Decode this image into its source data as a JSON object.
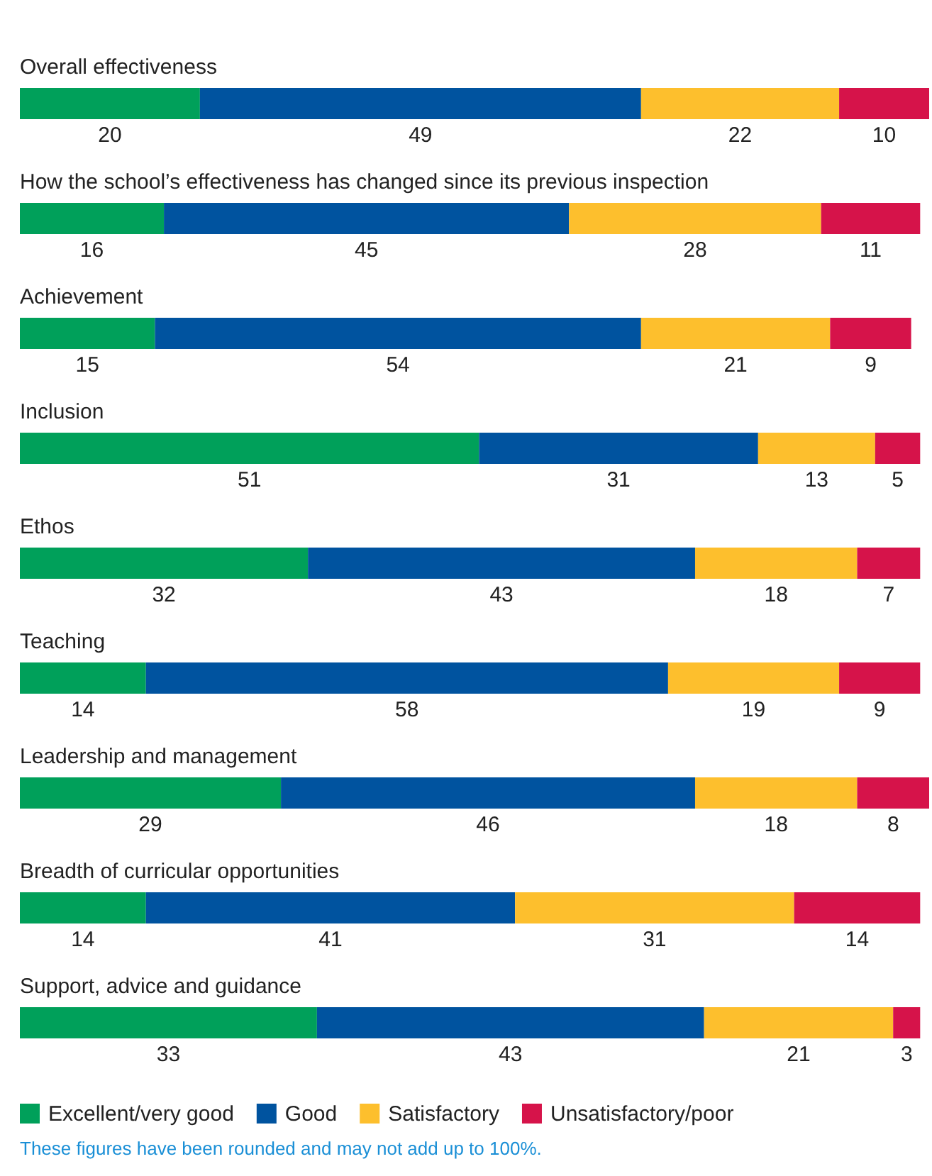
{
  "chart_data": {
    "type": "bar",
    "orientation": "horizontal",
    "stacked": true,
    "data_labels": true,
    "legend": "bottom",
    "tick_labels": "y",
    "categories": [
      "Overall effectiveness",
      "How the school’s effectiveness has changed since its previous inspection",
      "Achievement",
      "Inclusion",
      "Ethos",
      "Teaching",
      "Leadership and management",
      "Breadth of curricular opportunities",
      "Support, advice and guidance"
    ],
    "series": [
      {
        "name": "Excellent/very good",
        "color": "#00a05a",
        "values": [
          20,
          16,
          15,
          51,
          32,
          14,
          29,
          14,
          33
        ]
      },
      {
        "name": "Good",
        "color": "#00539f",
        "values": [
          49,
          45,
          54,
          31,
          43,
          58,
          46,
          41,
          43
        ]
      },
      {
        "name": "Satisfactory",
        "color": "#fdbf2d",
        "values": [
          22,
          28,
          21,
          13,
          18,
          19,
          18,
          31,
          21
        ]
      },
      {
        "name": "Unsatisfactory/poor",
        "color": "#d6134a",
        "values": [
          10,
          11,
          9,
          5,
          7,
          9,
          8,
          14,
          3
        ]
      }
    ],
    "annotations": [
      "These figures have been rounded and may not add up to 100%."
    ]
  }
}
